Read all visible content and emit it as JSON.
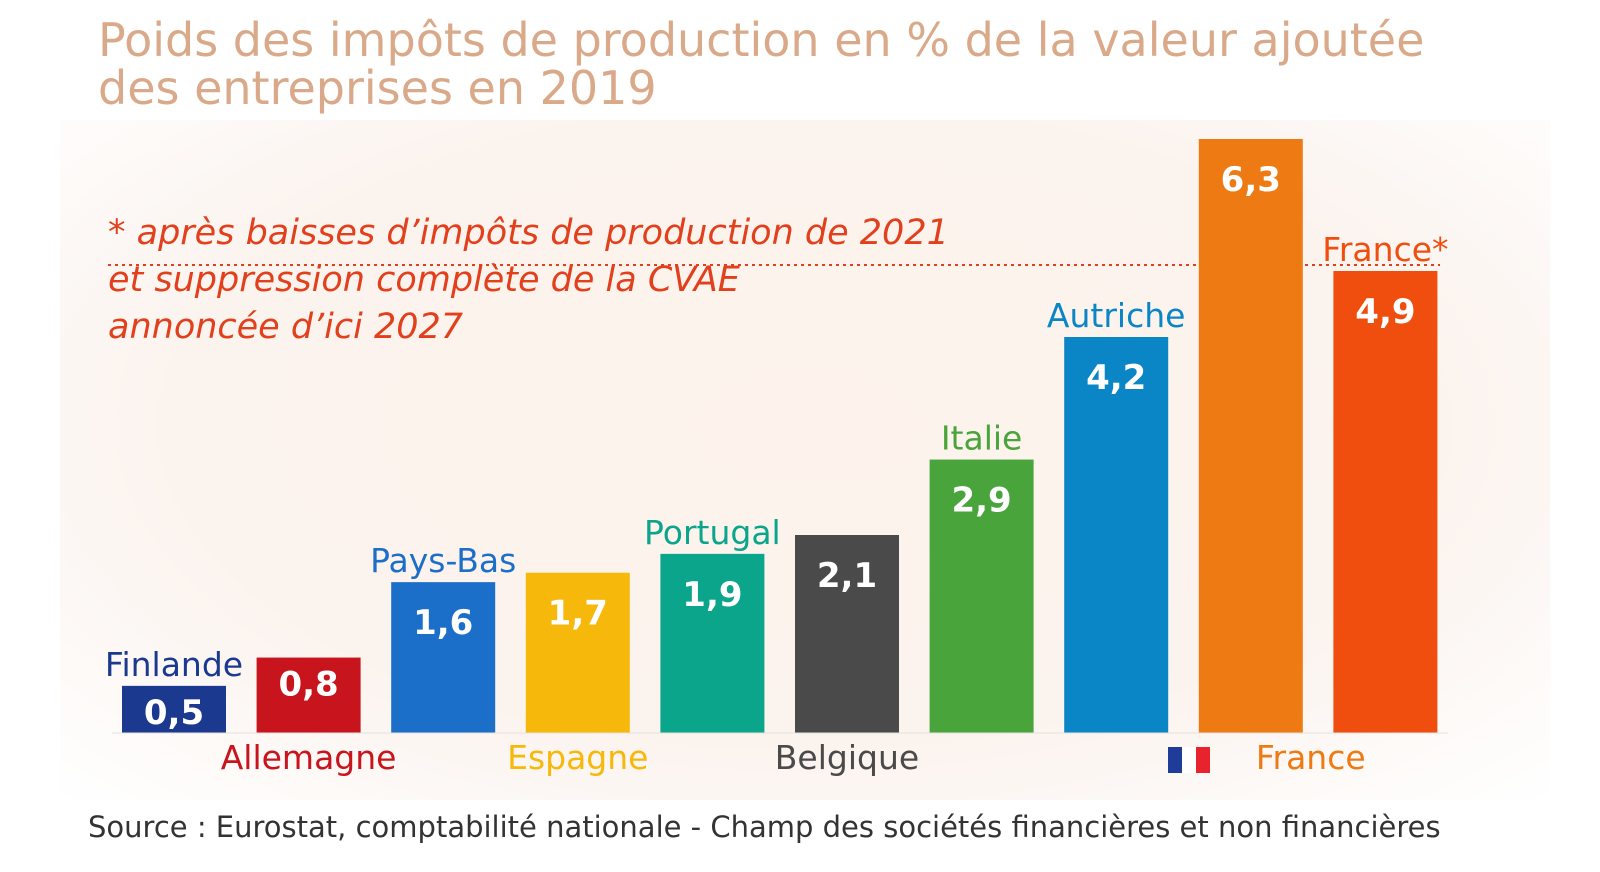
{
  "title": {
    "line1": "Poids des impôts de production en % de la valeur ajoutée",
    "line2": "des entreprises en 2019"
  },
  "annotation": {
    "line1": "* après baisses d’impôts de production de 2021",
    "line2": "et suppression complète de la CVAE",
    "line3": "annoncée d’ici 2027"
  },
  "source": "Source : Eurostat, comptabilité nationale - Champ des sociétés financières et non financières",
  "chart_data": {
    "type": "bar",
    "title": "Poids des impôts de production en % de la valeur ajoutée des entreprises en 2019",
    "xlabel": "",
    "ylabel": "",
    "ylim": [
      0,
      6.3
    ],
    "categories": [
      "Finlande",
      "Allemagne",
      "Pays-Bas",
      "Espagne",
      "Portugal",
      "Belgique",
      "Italie",
      "Autriche",
      "France",
      "France*"
    ],
    "values": [
      0.5,
      0.8,
      1.6,
      1.7,
      1.9,
      2.1,
      2.9,
      4.2,
      6.3,
      4.9
    ],
    "value_labels": [
      "0,5",
      "0,8",
      "1,6",
      "1,7",
      "1,9",
      "2,1",
      "2,9",
      "4,2",
      "6,3",
      "4,9"
    ],
    "colors": [
      "#1b3a8f",
      "#c8141c",
      "#1b6fc9",
      "#f7b80c",
      "#0aa58a",
      "#4a4a4a",
      "#48a43b",
      "#0a86c7",
      "#ee7a14",
      "#ef4e0e"
    ],
    "label_colors": [
      "#1b3a8f",
      "#c8141c",
      "#1b6fc9",
      "#f7b80c",
      "#0aa58a",
      "#4a4a4a",
      "#48a43b",
      "#0a86c7",
      "#ee7a14",
      "#ef4e0e"
    ],
    "label_positions": [
      "above",
      "below",
      "above",
      "below",
      "above",
      "below",
      "above",
      "above",
      "below",
      "above"
    ],
    "reference_line": {
      "value": 4.9,
      "style": "dotted",
      "color": "#e2401c"
    },
    "flag_colors": [
      "#1f3c99",
      "#ffffff",
      "#e8232e"
    ]
  }
}
